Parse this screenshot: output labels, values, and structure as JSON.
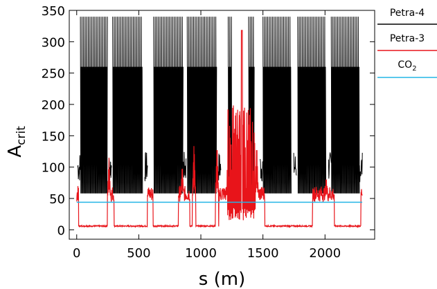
{
  "chart_data": {
    "type": "line",
    "xlabel": "s  (m)",
    "ylabel_main": "A",
    "ylabel_sub": "crit",
    "xlim": [
      -60,
      2400
    ],
    "ylim": [
      -15,
      350
    ],
    "x_ticks": [
      0,
      500,
      1000,
      1500,
      2000
    ],
    "y_ticks": [
      0,
      50,
      100,
      150,
      200,
      250,
      300,
      350
    ],
    "x_tick_labels": [
      "0",
      "500",
      "1000",
      "1500",
      "2000"
    ],
    "y_tick_labels": [
      "0",
      "50",
      "100",
      "150",
      "200",
      "250",
      "300",
      "350"
    ],
    "legend_position": "right",
    "legend": [
      {
        "label": "Petra-4",
        "sub": "",
        "color": "#000000"
      },
      {
        "label": "Petra-3",
        "sub": "",
        "color": "#e8141a"
      },
      {
        "label": "CO",
        "sub": "2",
        "color": "#22b5e6"
      }
    ],
    "series": [
      {
        "name": "Petra-4",
        "color": "#000000",
        "segments": [
          [
            30,
            250
          ],
          [
            290,
            530
          ],
          [
            620,
            860
          ],
          [
            890,
            1130
          ],
          [
            1220,
            1250
          ],
          [
            1385,
            1430
          ],
          [
            1500,
            1730
          ],
          [
            1780,
            2010
          ],
          [
            2050,
            2280
          ]
        ],
        "segment_peak": 340,
        "segment_mid": 260,
        "segment_low": 58,
        "edge_values": [
          75,
          125
        ]
      },
      {
        "name": "Petra-3",
        "color": "#e8141a",
        "baseline": 5,
        "bump_level": 50,
        "segments": [
          [
            15,
            265
          ],
          [
            300,
            570
          ],
          [
            615,
            820
          ],
          [
            910,
            1145
          ],
          [
            1430,
            1440
          ],
          [
            1515,
            1900
          ],
          [
            2075,
            2290
          ]
        ],
        "peaks": [
          {
            "x": 260,
            "y": 115
          },
          {
            "x": 850,
            "y": 105
          },
          {
            "x": 945,
            "y": 140
          },
          {
            "x": 1130,
            "y": 140
          },
          {
            "x": 1275,
            "y": 250
          },
          {
            "x": 1310,
            "y": 270
          },
          {
            "x": 1330,
            "y": 318
          },
          {
            "x": 1355,
            "y": 200
          },
          {
            "x": 1375,
            "y": 145
          },
          {
            "x": 1450,
            "y": 140
          },
          {
            "x": 2010,
            "y": 85
          }
        ]
      },
      {
        "name": "CO2",
        "color": "#22b5e6",
        "x": [
          0,
          2300
        ],
        "y": [
          44,
          44
        ]
      }
    ]
  }
}
